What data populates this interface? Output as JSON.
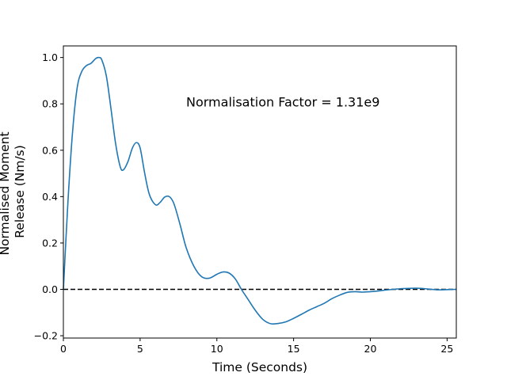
{
  "chart_data": {
    "type": "line",
    "title": "",
    "xlabel": "Time (Seconds)",
    "ylabel_lines": [
      "Normalised Moment",
      "Release (Nm/s)"
    ],
    "xlim": [
      0,
      25.6
    ],
    "ylim": [
      -0.21,
      1.05
    ],
    "x_ticks": [
      0,
      5,
      10,
      15,
      20,
      25
    ],
    "x_tick_labels": [
      "0",
      "5",
      "10",
      "15",
      "20",
      "25"
    ],
    "y_ticks": [
      -0.2,
      0.0,
      0.2,
      0.4,
      0.6,
      0.8,
      1.0
    ],
    "y_tick_labels": [
      "−0.2",
      "0.0",
      "0.2",
      "0.4",
      "0.6",
      "0.8",
      "1.0"
    ],
    "grid": false,
    "annotation": {
      "text": "Normalisation Factor = 1.31e9",
      "x": 8.0,
      "y": 0.81
    },
    "reference_line": {
      "y": 0.0,
      "style": "dashed",
      "color": "#000000"
    },
    "series": [
      {
        "color": "#1f77b4",
        "x": [
          0,
          0.3,
          0.6,
          0.9,
          1.2,
          1.5,
          1.8,
          2.1,
          2.3,
          2.5,
          2.8,
          3.1,
          3.4,
          3.7,
          3.9,
          4.2,
          4.5,
          4.75,
          5.0,
          5.3,
          5.6,
          6.0,
          6.3,
          6.6,
          6.9,
          7.2,
          7.6,
          8.0,
          8.5,
          9.0,
          9.5,
          10.0,
          10.4,
          10.8,
          11.2,
          11.6,
          12.0,
          12.5,
          13.0,
          13.5,
          14.0,
          14.5,
          15.0,
          15.5,
          16.0,
          16.5,
          17.0,
          17.5,
          18.0,
          18.5,
          19.0,
          19.5,
          20.0,
          20.5,
          21.0,
          21.5,
          22.0,
          22.5,
          23.0,
          23.5,
          24.0,
          24.5,
          25.0,
          25.6
        ],
        "y": [
          0.0,
          0.38,
          0.68,
          0.87,
          0.94,
          0.965,
          0.975,
          0.995,
          1.0,
          0.99,
          0.92,
          0.78,
          0.63,
          0.53,
          0.515,
          0.55,
          0.61,
          0.633,
          0.61,
          0.5,
          0.41,
          0.365,
          0.375,
          0.398,
          0.4,
          0.37,
          0.28,
          0.18,
          0.1,
          0.055,
          0.048,
          0.065,
          0.075,
          0.07,
          0.045,
          0.0,
          -0.04,
          -0.09,
          -0.13,
          -0.148,
          -0.147,
          -0.14,
          -0.125,
          -0.108,
          -0.09,
          -0.075,
          -0.06,
          -0.04,
          -0.025,
          -0.013,
          -0.01,
          -0.012,
          -0.01,
          -0.007,
          -0.003,
          0.0,
          0.003,
          0.004,
          0.005,
          0.003,
          0.0,
          -0.002,
          -0.001,
          0.0
        ]
      }
    ]
  }
}
